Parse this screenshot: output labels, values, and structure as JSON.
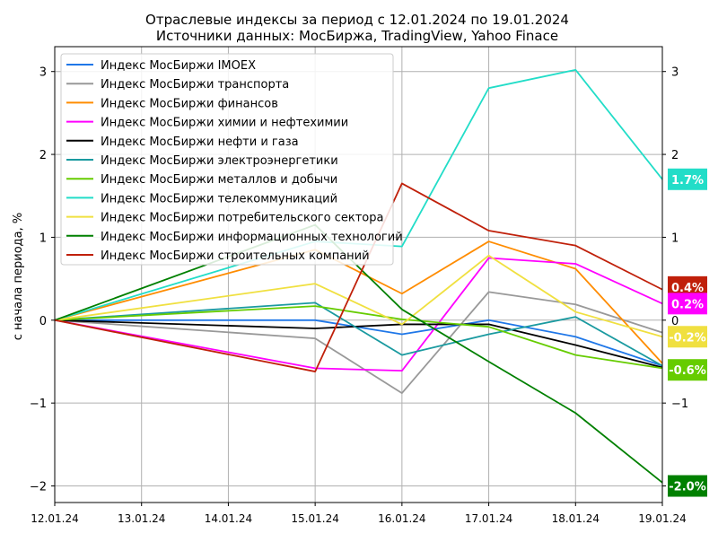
{
  "chart_data": {
    "type": "line",
    "title": "Отраслевые индексы за период с 12.01.2024 по 19.01.2024",
    "subtitle": "Источники данных: МосБиржа, TradingView, Yahoo Finace",
    "xlabel": "",
    "ylabel": "с начала периода, %",
    "x": [
      "12.01.24",
      "13.01.24",
      "14.01.24",
      "15.01.24",
      "16.01.24",
      "17.01.24",
      "18.01.24",
      "19.01.24"
    ],
    "ylim": [
      -2.2,
      3.3
    ],
    "yticks": [
      "−2",
      "−1",
      "0",
      "1",
      "2",
      "3"
    ],
    "ytick_values": [
      -2,
      -1,
      0,
      1,
      2,
      3
    ],
    "grid": true,
    "legend_position": "top-left",
    "series": [
      {
        "name": "Индекс МосБиржи IMOEX",
        "color": "#1f77e8",
        "points": [
          [
            0,
            0
          ],
          [
            3,
            0.0
          ],
          [
            4,
            -0.17
          ],
          [
            5,
            0.0
          ],
          [
            6,
            -0.2
          ],
          [
            7,
            -0.55
          ]
        ]
      },
      {
        "name": "Индекс МосБиржи транспорта",
        "color": "#999999",
        "points": [
          [
            0,
            0
          ],
          [
            3,
            -0.22
          ],
          [
            4,
            -0.88
          ],
          [
            5,
            0.34
          ],
          [
            6,
            0.19
          ],
          [
            7,
            -0.15
          ]
        ]
      },
      {
        "name": "Индекс МосБиржи финансов",
        "color": "#ff8c00",
        "points": [
          [
            0,
            0
          ],
          [
            3,
            0.85
          ],
          [
            4,
            0.32
          ],
          [
            5,
            0.95
          ],
          [
            6,
            0.62
          ],
          [
            7,
            -0.52
          ]
        ]
      },
      {
        "name": "Индекс МосБиржи химии и нефтехимии",
        "color": "#ff00ff",
        "points": [
          [
            0,
            0
          ],
          [
            3,
            -0.58
          ],
          [
            4,
            -0.61
          ],
          [
            5,
            0.75
          ],
          [
            6,
            0.68
          ],
          [
            7,
            0.2
          ]
        ]
      },
      {
        "name": "Индекс МосБиржи нефти и газа",
        "color": "#000000",
        "points": [
          [
            0,
            0
          ],
          [
            3,
            -0.1
          ],
          [
            4,
            -0.05
          ],
          [
            5,
            -0.05
          ],
          [
            6,
            -0.3
          ],
          [
            7,
            -0.57
          ]
        ]
      },
      {
        "name": "Индекс МосБиржи электроэнергетики",
        "color": "#1a9aa0",
        "points": [
          [
            0,
            0
          ],
          [
            3,
            0.21
          ],
          [
            4,
            -0.42
          ],
          [
            5,
            -0.17
          ],
          [
            6,
            0.04
          ],
          [
            7,
            -0.55
          ]
        ]
      },
      {
        "name": "Индекс МосБиржи металлов и добычи",
        "color": "#66cc00",
        "points": [
          [
            0,
            0
          ],
          [
            3,
            0.17
          ],
          [
            4,
            0.01
          ],
          [
            5,
            -0.08
          ],
          [
            6,
            -0.42
          ],
          [
            7,
            -0.58
          ]
        ]
      },
      {
        "name": "Индекс МосБиржи телекоммуникаций",
        "color": "#22ddc8",
        "points": [
          [
            0,
            0
          ],
          [
            3,
            0.95
          ],
          [
            4,
            0.89
          ],
          [
            5,
            2.8
          ],
          [
            6,
            3.02
          ],
          [
            7,
            1.7
          ]
        ]
      },
      {
        "name": "Индекс МосБиржи потребительского сектора",
        "color": "#f0e040",
        "points": [
          [
            0,
            0
          ],
          [
            3,
            0.44
          ],
          [
            4,
            -0.05
          ],
          [
            5,
            0.78
          ],
          [
            6,
            0.1
          ],
          [
            7,
            -0.2
          ]
        ]
      },
      {
        "name": "Индекс МосБиржи информационных технологий",
        "color": "#008000",
        "points": [
          [
            0,
            0
          ],
          [
            3,
            1.15
          ],
          [
            4,
            0.13
          ],
          [
            5,
            -0.5
          ],
          [
            6,
            -1.12
          ],
          [
            7,
            -1.96
          ]
        ]
      },
      {
        "name": "Индекс МосБиржи строительных компаний",
        "color": "#c0200a",
        "points": [
          [
            0,
            0
          ],
          [
            3,
            -0.62
          ],
          [
            4,
            1.65
          ],
          [
            5,
            1.08
          ],
          [
            6,
            0.9
          ],
          [
            7,
            0.37
          ]
        ]
      }
    ],
    "end_labels": [
      {
        "text": "1.7%",
        "value": 1.7,
        "bg": "#22ddc8",
        "fg": "#ffffff"
      },
      {
        "text": "0.4%",
        "value": 0.4,
        "bg": "#c0200a",
        "fg": "#ffffff"
      },
      {
        "text": "0.2%",
        "value": 0.2,
        "bg": "#ff00ff",
        "fg": "#ffffff"
      },
      {
        "text": "-0.2%",
        "value": -0.2,
        "bg": "#f0e040",
        "fg": "#ffffff"
      },
      {
        "text": "-0.6%",
        "value": -0.6,
        "bg": "#66cc00",
        "fg": "#ffffff"
      },
      {
        "text": "-2.0%",
        "value": -2.0,
        "bg": "#008000",
        "fg": "#ffffff"
      }
    ]
  }
}
